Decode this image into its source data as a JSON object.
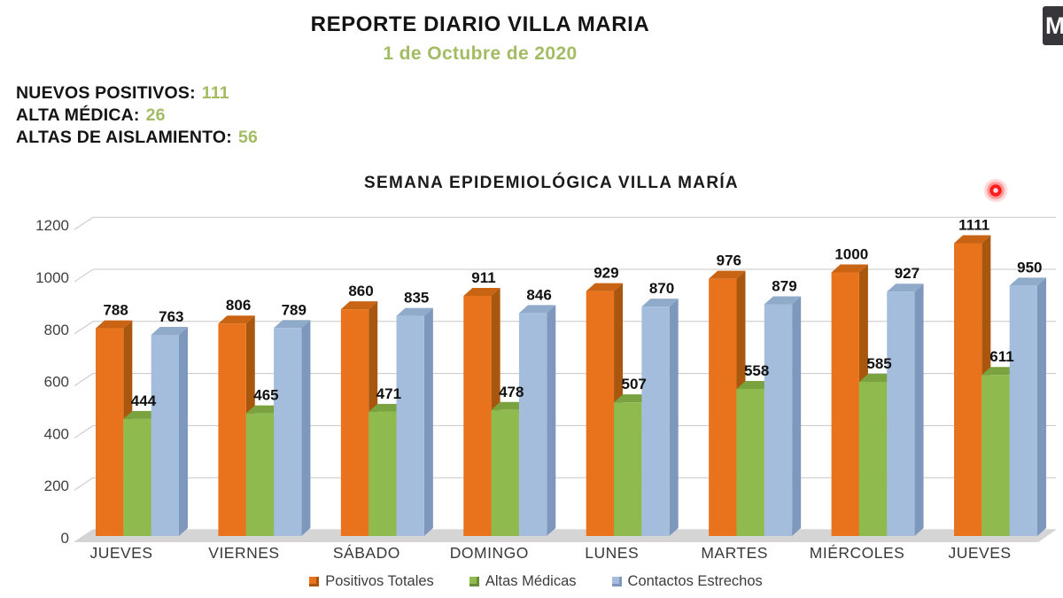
{
  "overlay": {
    "corner_badge": "M"
  },
  "header": {
    "title": "REPORTE DIARIO VILLA MARIA",
    "date": "1 de Octubre de 2020"
  },
  "stats": [
    {
      "label": "NUEVOS POSITIVOS:",
      "value": "111"
    },
    {
      "label": "ALTA MÉDICA:",
      "value": "26"
    },
    {
      "label": "ALTAS DE AISLAMIENTO:",
      "value": "56"
    }
  ],
  "colors": {
    "accent_green": "#a3bc64",
    "grid": "#c7c7c7",
    "axis_text": "#3f3f3f",
    "category_text": "#383838",
    "value_label_text": "#111111",
    "floor": "#d5d5d5"
  },
  "chart_data": {
    "type": "bar",
    "style": "3d-clustered-column",
    "title": "SEMANA EPIDEMIOLÓGICA VILLA MARÍA",
    "categories": [
      "JUEVES",
      "VIERNES",
      "SÁBADO",
      "DOMINGO",
      "LUNES",
      "MARTES",
      "MIÉRCOLES",
      "JUEVES"
    ],
    "series": [
      {
        "name": "Positivos Totales",
        "color": "#e8731c",
        "side_color": "#a9560f",
        "top_color": "#c86414",
        "values": [
          788,
          806,
          860,
          911,
          929,
          976,
          1000,
          1111
        ]
      },
      {
        "name": "Altas Médicas",
        "color": "#8fba4d",
        "side_color": "#6a8c38",
        "top_color": "#7aa23f",
        "values": [
          444,
          465,
          471,
          478,
          507,
          558,
          585,
          611
        ]
      },
      {
        "name": "Contactos Estrechos",
        "color": "#a4bddc",
        "side_color": "#7e97bc",
        "top_color": "#90aaca",
        "values": [
          763,
          789,
          835,
          846,
          870,
          879,
          927,
          950
        ]
      }
    ],
    "ylim": [
      0,
      1200
    ],
    "ytick_step": 200,
    "grid": true,
    "data_labels": true,
    "legend_position": "bottom"
  },
  "pointer": {
    "type": "laser-dot"
  }
}
